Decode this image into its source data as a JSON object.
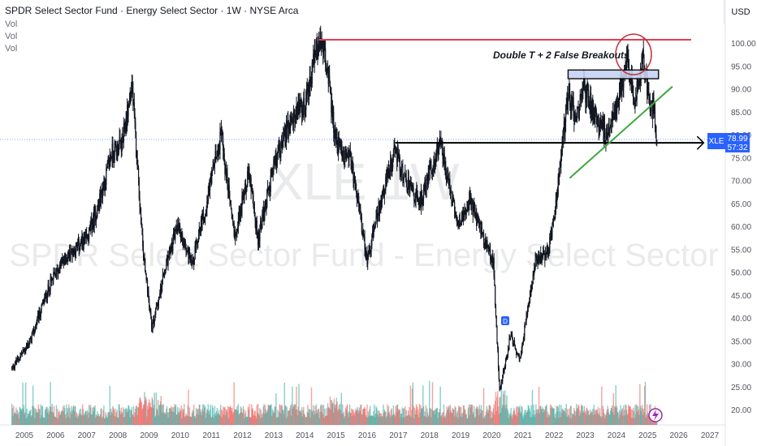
{
  "header": {
    "title": "SPDR Select Sector Fund · Energy Select Sector · 1W · NYSE Arca",
    "vol_labels": [
      "Vol",
      "Vol",
      "Vol"
    ]
  },
  "currency": "USD",
  "watermark": {
    "ticker": "XLE 1W",
    "name": "SPDR Select Sector Fund - Energy Select Sector"
  },
  "price_tag": {
    "symbol": "XLE",
    "price": "78.99",
    "countdown": "57:32"
  },
  "annotation": "Double T + 2 False Breakouts",
  "markers": {
    "dividend": "D"
  },
  "colors": {
    "candle": "#131722",
    "vol_up": "#26a69a",
    "vol_down": "#ef5350",
    "resistance": "#e04050",
    "support": "#000000",
    "trend": "#3ea63e",
    "box_fill": "#c7d3f5",
    "circle": "#c0303a",
    "tag": "#2962ff"
  },
  "chart_data": {
    "type": "line",
    "subtype": "weekly OHLC candlestick with volume",
    "x_ticks": [
      "2005",
      "2006",
      "2007",
      "2008",
      "2009",
      "2010",
      "2011",
      "2012",
      "2013",
      "2014",
      "2015",
      "2016",
      "2017",
      "2018",
      "2019",
      "2020",
      "2021",
      "2022",
      "2023",
      "2024",
      "2025",
      "2026",
      "2027"
    ],
    "y_ticks": [
      "100.00",
      "95.00",
      "90.00",
      "85.00",
      "80.00",
      "75.00",
      "70.00",
      "65.00",
      "60.00",
      "55.00",
      "50.00",
      "45.00",
      "40.00",
      "35.00",
      "30.00",
      "25.00",
      "20.00"
    ],
    "xlim": [
      2004.6,
      2027.3
    ],
    "ylim": [
      17.5,
      103.0
    ],
    "grid": false,
    "series": [
      {
        "name": "XLE",
        "points": [
          [
            2004.6,
            29
          ],
          [
            2005.2,
            35
          ],
          [
            2005.8,
            47
          ],
          [
            2006.2,
            52
          ],
          [
            2006.6,
            55
          ],
          [
            2007.0,
            57
          ],
          [
            2007.4,
            65
          ],
          [
            2007.8,
            76
          ],
          [
            2008.15,
            78
          ],
          [
            2008.45,
            91
          ],
          [
            2008.8,
            55
          ],
          [
            2009.1,
            38
          ],
          [
            2009.5,
            50
          ],
          [
            2009.9,
            60
          ],
          [
            2010.4,
            52
          ],
          [
            2010.9,
            67
          ],
          [
            2011.3,
            80
          ],
          [
            2011.75,
            58
          ],
          [
            2012.2,
            72
          ],
          [
            2012.5,
            57
          ],
          [
            2013.0,
            73
          ],
          [
            2013.6,
            84
          ],
          [
            2014.0,
            86
          ],
          [
            2014.45,
            101
          ],
          [
            2014.7,
            95
          ],
          [
            2015.0,
            78
          ],
          [
            2015.5,
            74
          ],
          [
            2016.0,
            53
          ],
          [
            2016.5,
            67
          ],
          [
            2016.9,
            77
          ],
          [
            2017.2,
            70
          ],
          [
            2017.7,
            65
          ],
          [
            2018.0,
            72
          ],
          [
            2018.35,
            78
          ],
          [
            2018.9,
            60
          ],
          [
            2019.3,
            66
          ],
          [
            2019.8,
            56
          ],
          [
            2020.05,
            52
          ],
          [
            2020.25,
            24
          ],
          [
            2020.6,
            36
          ],
          [
            2020.9,
            31
          ],
          [
            2021.4,
            53
          ],
          [
            2021.8,
            54
          ],
          [
            2022.0,
            62
          ],
          [
            2022.3,
            80
          ],
          [
            2022.45,
            89
          ],
          [
            2022.7,
            84
          ],
          [
            2022.95,
            90
          ],
          [
            2023.3,
            85
          ],
          [
            2023.7,
            79
          ],
          [
            2024.0,
            87
          ],
          [
            2024.35,
            96
          ],
          [
            2024.6,
            87
          ],
          [
            2024.85,
            97
          ],
          [
            2025.1,
            85
          ],
          [
            2025.2,
            86
          ],
          [
            2025.3,
            79
          ]
        ]
      }
    ],
    "levels": [
      {
        "kind": "resistance",
        "value": 100.7,
        "from": 2014.45,
        "to": 2026.4
      },
      {
        "kind": "support",
        "value": 78.2,
        "from": 2016.9,
        "to": 2026.8
      },
      {
        "kind": "range-box",
        "low": 92.2,
        "high": 94.1,
        "from": 2022.45,
        "to": 2025.35
      }
    ],
    "trendline": {
      "from": [
        2022.5,
        70.5
      ],
      "to": [
        2025.8,
        90.5
      ]
    }
  }
}
